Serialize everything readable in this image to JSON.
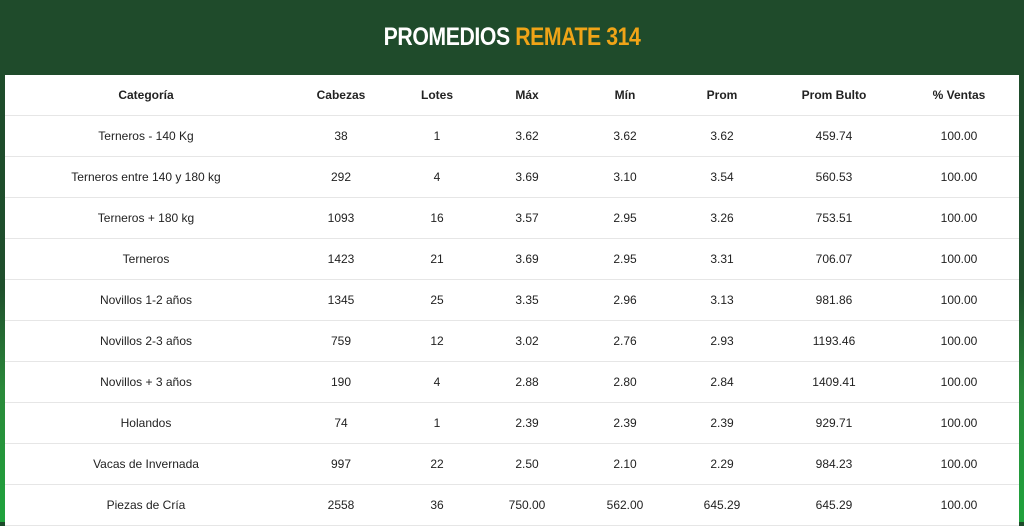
{
  "header": {
    "title_main": "PROMEDIOS",
    "title_highlight": "REMATE 314"
  },
  "table": {
    "columns": [
      "Categoría",
      "Cabezas",
      "Lotes",
      "Máx",
      "Mín",
      "Prom",
      "Prom Bulto",
      "% Ventas"
    ],
    "rows": [
      [
        "Terneros - 140 Kg",
        "38",
        "1",
        "3.62",
        "3.62",
        "3.62",
        "459.74",
        "100.00"
      ],
      [
        "Terneros entre 140 y 180 kg",
        "292",
        "4",
        "3.69",
        "3.10",
        "3.54",
        "560.53",
        "100.00"
      ],
      [
        "Terneros + 180 kg",
        "1093",
        "16",
        "3.57",
        "2.95",
        "3.26",
        "753.51",
        "100.00"
      ],
      [
        "Terneros",
        "1423",
        "21",
        "3.69",
        "2.95",
        "3.31",
        "706.07",
        "100.00"
      ],
      [
        "Novillos 1-2 años",
        "1345",
        "25",
        "3.35",
        "2.96",
        "3.13",
        "981.86",
        "100.00"
      ],
      [
        "Novillos 2-3 años",
        "759",
        "12",
        "3.02",
        "2.76",
        "2.93",
        "1193.46",
        "100.00"
      ],
      [
        "Novillos + 3 años",
        "190",
        "4",
        "2.88",
        "2.80",
        "2.84",
        "1409.41",
        "100.00"
      ],
      [
        "Holandos",
        "74",
        "1",
        "2.39",
        "2.39",
        "2.39",
        "929.71",
        "100.00"
      ],
      [
        "Vacas de Invernada",
        "997",
        "22",
        "2.50",
        "2.10",
        "2.29",
        "984.23",
        "100.00"
      ],
      [
        "Piezas de Cría",
        "2558",
        "36",
        "750.00",
        "562.00",
        "645.29",
        "645.29",
        "100.00"
      ]
    ]
  }
}
